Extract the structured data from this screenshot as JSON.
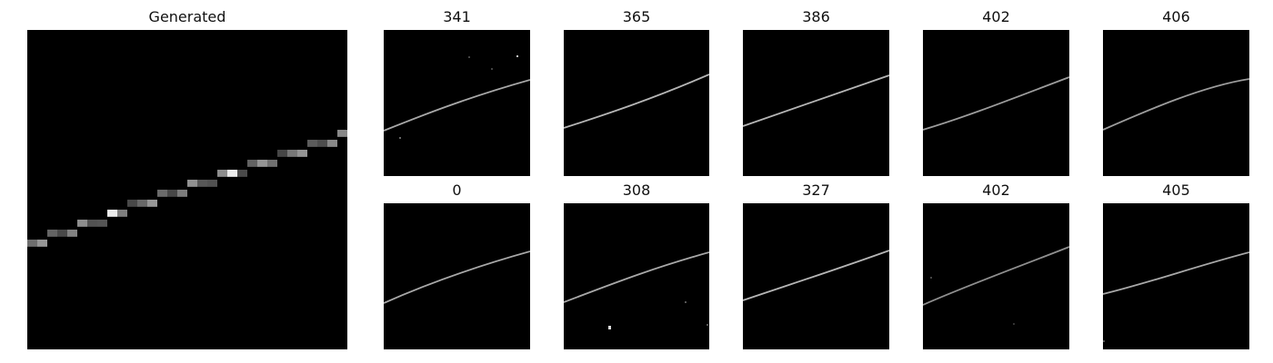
{
  "figure": {
    "background": "#ffffff",
    "image_background": "#000000",
    "main": {
      "title": "Generated"
    },
    "grid": {
      "rows": [
        {
          "titles": [
            "341",
            "365",
            "386",
            "402",
            "406"
          ]
        },
        {
          "titles": [
            "0",
            "308",
            "327",
            "402",
            "405"
          ]
        }
      ]
    }
  }
}
